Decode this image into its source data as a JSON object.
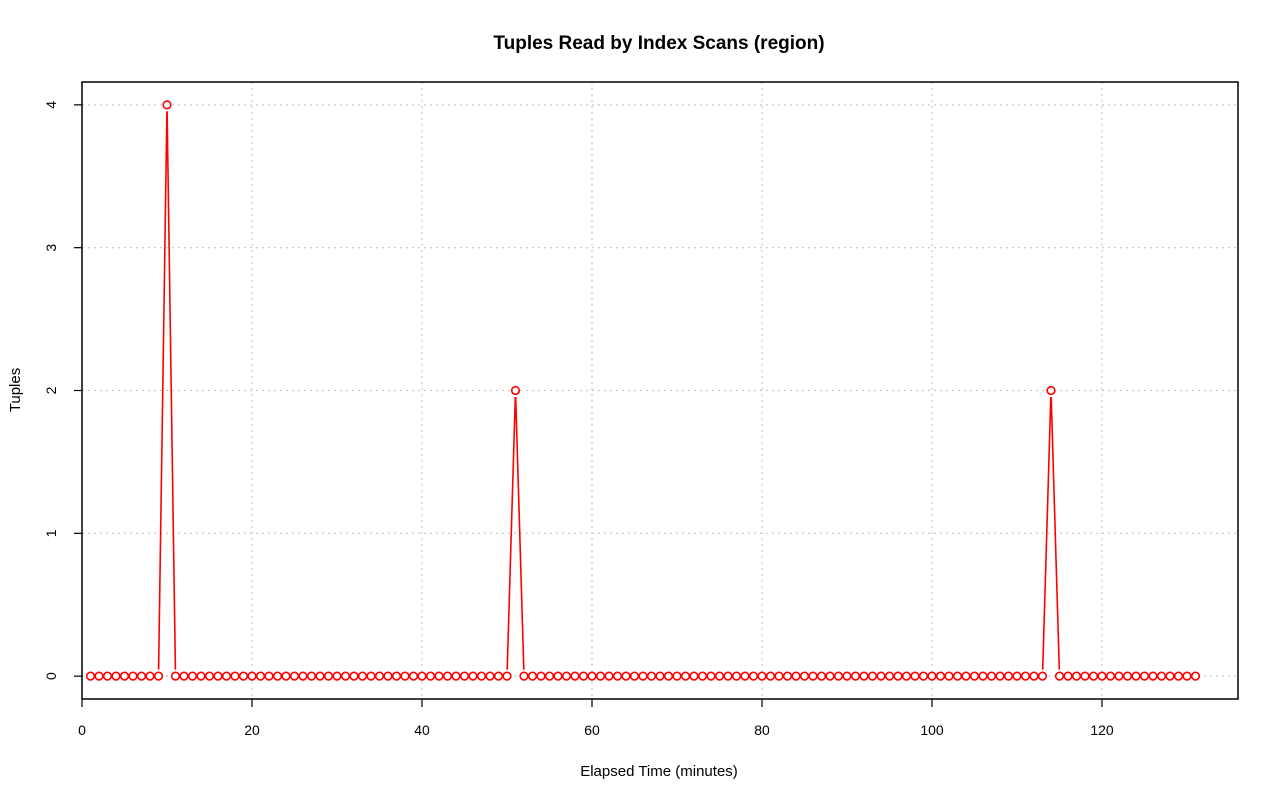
{
  "chart_data": {
    "type": "line",
    "title": "Tuples Read by Index Scans (region)",
    "xlabel": "Elapsed Time (minutes)",
    "ylabel": "Tuples",
    "xlim": [
      0,
      136
    ],
    "ylim": [
      -0.16,
      4.16
    ],
    "x_ticks": [
      0,
      20,
      40,
      60,
      80,
      100,
      120
    ],
    "y_ticks": [
      0,
      1,
      2,
      3,
      4
    ],
    "grid": true,
    "color": "#ff0000",
    "x_start": 1,
    "x_end": 131,
    "x_step": 1,
    "nonzero_points": [
      {
        "x": 10,
        "y": 4
      },
      {
        "x": 51,
        "y": 2
      },
      {
        "x": 114,
        "y": 2
      }
    ],
    "baseline_value": 0
  }
}
